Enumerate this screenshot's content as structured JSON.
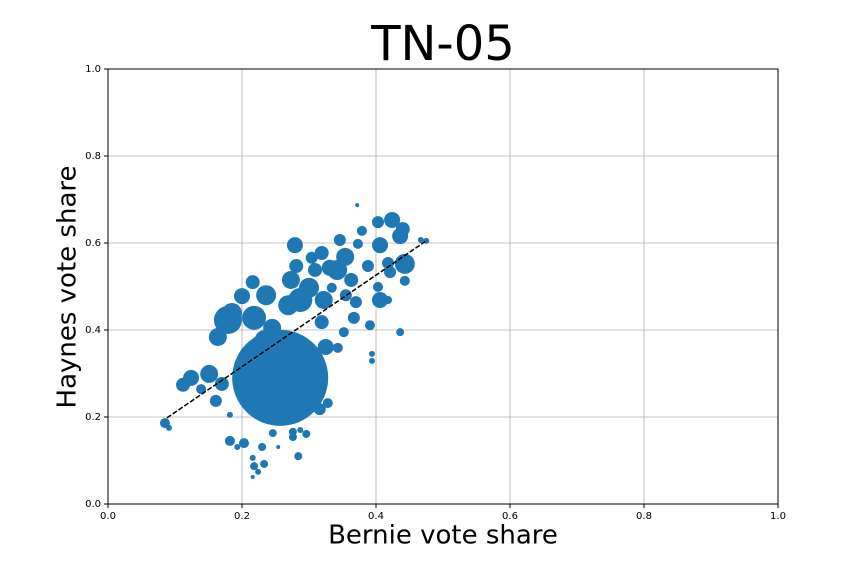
{
  "chart_data": {
    "type": "scatter",
    "title": "TN-05",
    "x_label": "Bernie vote share",
    "y_label": "Haynes vote share",
    "color": "#1f77b4",
    "grid": true,
    "xlim": [
      0,
      1
    ],
    "ylim": [
      0,
      1
    ],
    "xticks": [
      {
        "value": 0,
        "label": "0.0"
      },
      0.2,
      0.4,
      0.6,
      0.8,
      {
        "value": 1,
        "label": "1.0"
      }
    ],
    "yticks": [
      {
        "value": 0,
        "label": "0.0"
      },
      0.2,
      0.4,
      0.6,
      0.8,
      {
        "value": 1,
        "label": "1.0"
      }
    ],
    "x": [
      0.085,
      0.091,
      0.112,
      0.124,
      0.139,
      0.151,
      0.161,
      0.17,
      0.164,
      0.179,
      0.185,
      0.2,
      0.216,
      0.236,
      0.218,
      0.245,
      0.234,
      0.279,
      0.281,
      0.273,
      0.287,
      0.269,
      0.304,
      0.309,
      0.319,
      0.331,
      0.346,
      0.354,
      0.363,
      0.373,
      0.372,
      0.379,
      0.388,
      0.403,
      0.406,
      0.424,
      0.436,
      0.44,
      0.443,
      0.418,
      0.421,
      0.443,
      0.403,
      0.406,
      0.418,
      0.391,
      0.436,
      0.394,
      0.394,
      0.37,
      0.367,
      0.352,
      0.343,
      0.325,
      0.319,
      0.334,
      0.355,
      0.257,
      0.316,
      0.328,
      0.276,
      0.276,
      0.296,
      0.287,
      0.246,
      0.23,
      0.216,
      0.218,
      0.233,
      0.224,
      0.216,
      0.203,
      0.193,
      0.182,
      0.182,
      0.284,
      0.254,
      0.276,
      0.467,
      0.475,
      0.3,
      0.322,
      0.342
    ],
    "y": [
      0.186,
      0.175,
      0.274,
      0.29,
      0.264,
      0.299,
      0.237,
      0.276,
      0.384,
      0.423,
      0.439,
      0.478,
      0.51,
      0.48,
      0.428,
      0.405,
      0.377,
      0.595,
      0.547,
      0.515,
      0.469,
      0.457,
      0.566,
      0.538,
      0.577,
      0.543,
      0.607,
      0.568,
      0.515,
      0.598,
      0.687,
      0.628,
      0.547,
      0.648,
      0.595,
      0.653,
      0.616,
      0.632,
      0.552,
      0.554,
      0.533,
      0.513,
      0.499,
      0.469,
      0.469,
      0.411,
      0.395,
      0.345,
      0.329,
      0.464,
      0.428,
      0.395,
      0.359,
      0.361,
      0.418,
      0.497,
      0.48,
      0.29,
      0.218,
      0.232,
      0.198,
      0.166,
      0.161,
      0.17,
      0.163,
      0.131,
      0.106,
      0.087,
      0.092,
      0.074,
      0.062,
      0.14,
      0.131,
      0.145,
      0.205,
      0.11,
      0.131,
      0.154,
      0.607,
      0.605,
      0.497,
      0.469,
      0.538
    ],
    "sizes": [
      100,
      36,
      196,
      256,
      100,
      324,
      144,
      196,
      324,
      784,
      400,
      256,
      196,
      400,
      576,
      324,
      400,
      256,
      196,
      324,
      576,
      400,
      144,
      196,
      196,
      256,
      144,
      324,
      196,
      100,
      16,
      100,
      144,
      144,
      256,
      256,
      256,
      196,
      400,
      144,
      144,
      100,
      100,
      256,
      64,
      100,
      64,
      36,
      36,
      144,
      144,
      100,
      100,
      256,
      196,
      100,
      144,
      9216,
      144,
      100,
      100,
      64,
      64,
      36,
      64,
      64,
      36,
      64,
      64,
      36,
      16,
      100,
      36,
      100,
      36,
      64,
      16,
      64,
      36,
      36,
      400,
      324,
      400
    ],
    "trend": {
      "x": [
        0.088,
        0.475
      ],
      "y": [
        0.198,
        0.605
      ],
      "color": "#000000"
    }
  }
}
